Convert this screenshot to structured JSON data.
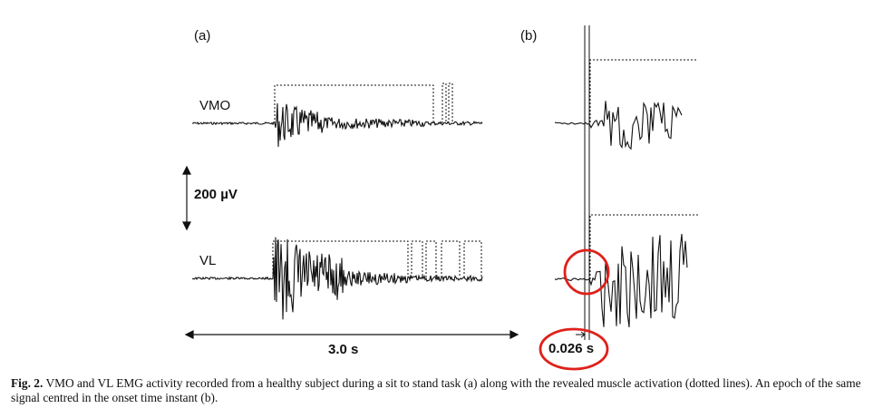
{
  "panels": {
    "a": {
      "label": "(a)",
      "top_channel": "VMO",
      "bottom_channel": "VL",
      "scale_bar": "200 µV",
      "time_bar": "3.0 s"
    },
    "b": {
      "label": "(b)",
      "time_bar": "0.026 s"
    }
  },
  "caption": {
    "label": "Fig. 2.",
    "text": "VMO and VL EMG activity recorded from a healthy subject during a sit to stand task (a) along with the revealed muscle activation (dotted lines). An epoch of the same signal centred in the onset time instant (b)."
  },
  "colors": {
    "signal": "#111111",
    "highlight": "#e0201a"
  }
}
